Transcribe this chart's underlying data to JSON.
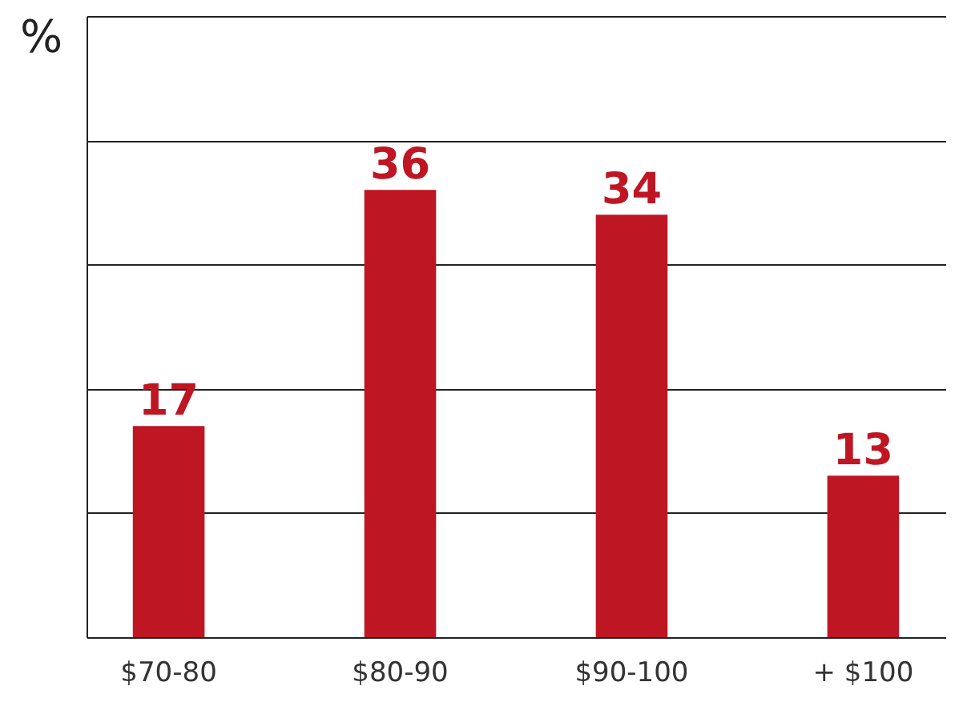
{
  "chart_data": {
    "type": "bar",
    "ylabel": "%",
    "categories": [
      "$70-80",
      "$80-90",
      "$90-100",
      "+ $100"
    ],
    "values": [
      17,
      36,
      34,
      13
    ],
    "color": "#be1622",
    "ylim": [
      0,
      50
    ],
    "yticks": [
      {
        "value": 0,
        "label": null
      },
      {
        "value": 10,
        "label": null
      },
      {
        "value": 20,
        "label": null
      },
      {
        "value": 30,
        "label": null
      },
      {
        "value": 40,
        "label": null
      },
      {
        "value": 50,
        "label": null
      }
    ],
    "grid": "y",
    "data_labels": true
  }
}
